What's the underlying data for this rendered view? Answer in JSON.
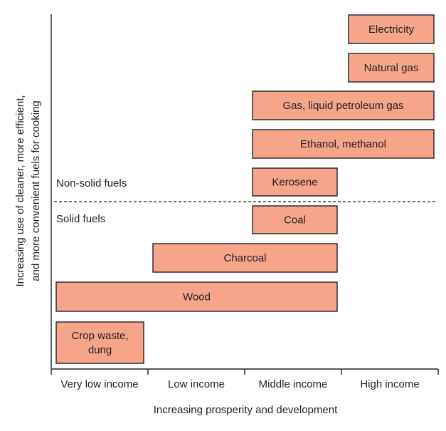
{
  "diagram": {
    "y_axis_title_line1": "Increasing use of cleaner, more efficient,",
    "y_axis_title_line2": "and more convenient fuels for cooking",
    "x_axis_title": "Increasing prosperity and development",
    "income_levels": [
      "Very low income",
      "Low income",
      "Middle income",
      "High income"
    ],
    "group_labels": {
      "non_solid": "Non-solid fuels",
      "solid": "Solid fuels"
    },
    "fuels": [
      {
        "label": [
          "Electricity"
        ],
        "from_income": 3,
        "to_income": 3
      },
      {
        "label": [
          "Natural gas"
        ],
        "from_income": 3,
        "to_income": 3
      },
      {
        "label": [
          "Gas, liquid petroleum gas"
        ],
        "from_income": 2,
        "to_income": 3
      },
      {
        "label": [
          "Ethanol, methanol"
        ],
        "from_income": 2,
        "to_income": 3
      },
      {
        "label": [
          "Kerosene"
        ],
        "from_income": 2,
        "to_income": 2
      },
      {
        "label": [
          "Coal"
        ],
        "from_income": 2,
        "to_income": 2
      },
      {
        "label": [
          "Charcoal"
        ],
        "from_income": 1,
        "to_income": 2
      },
      {
        "label": [
          "Wood"
        ],
        "from_income": 0,
        "to_income": 2
      },
      {
        "label": [
          "Crop waste,",
          "dung"
        ],
        "from_income": 0,
        "to_income": 0
      }
    ],
    "colors": {
      "bar_fill": "#f6a58b",
      "bar_stroke": "#231f20",
      "axis": "#231f20",
      "text": "#231f20"
    }
  }
}
